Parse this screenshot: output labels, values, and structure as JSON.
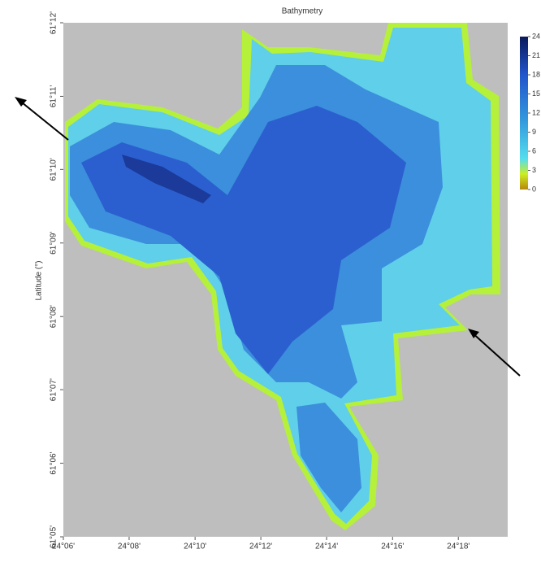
{
  "map": {
    "title": "Bathymetry",
    "y_label": "Latitude (°)",
    "xlim": [
      24.1,
      24.325
    ],
    "ylim": [
      61.0833,
      61.2
    ],
    "xticks": [
      {
        "value": 24.1,
        "label": "24°06'"
      },
      {
        "value": 24.1333,
        "label": "24°08'"
      },
      {
        "value": 24.1667,
        "label": "24°10'"
      },
      {
        "value": 24.2,
        "label": "24°12'"
      },
      {
        "value": 24.2333,
        "label": "24°14'"
      },
      {
        "value": 24.2667,
        "label": "24°16'"
      },
      {
        "value": 24.3,
        "label": "24°18'"
      }
    ],
    "yticks": [
      {
        "value": 61.0833,
        "label": "61°05'"
      },
      {
        "value": 61.1,
        "label": "61°06'"
      },
      {
        "value": 61.1167,
        "label": "61°07'"
      },
      {
        "value": 61.1333,
        "label": "61°08'"
      },
      {
        "value": 61.15,
        "label": "61°09'"
      },
      {
        "value": 61.1667,
        "label": "61°10'"
      },
      {
        "value": 61.1833,
        "label": "61°11'"
      },
      {
        "value": 61.2,
        "label": "61°12'"
      }
    ],
    "colorbar": {
      "lim": [
        0,
        24
      ],
      "ticks": [
        0,
        3,
        6,
        9,
        12,
        15,
        18,
        21,
        24
      ]
    }
  }
}
